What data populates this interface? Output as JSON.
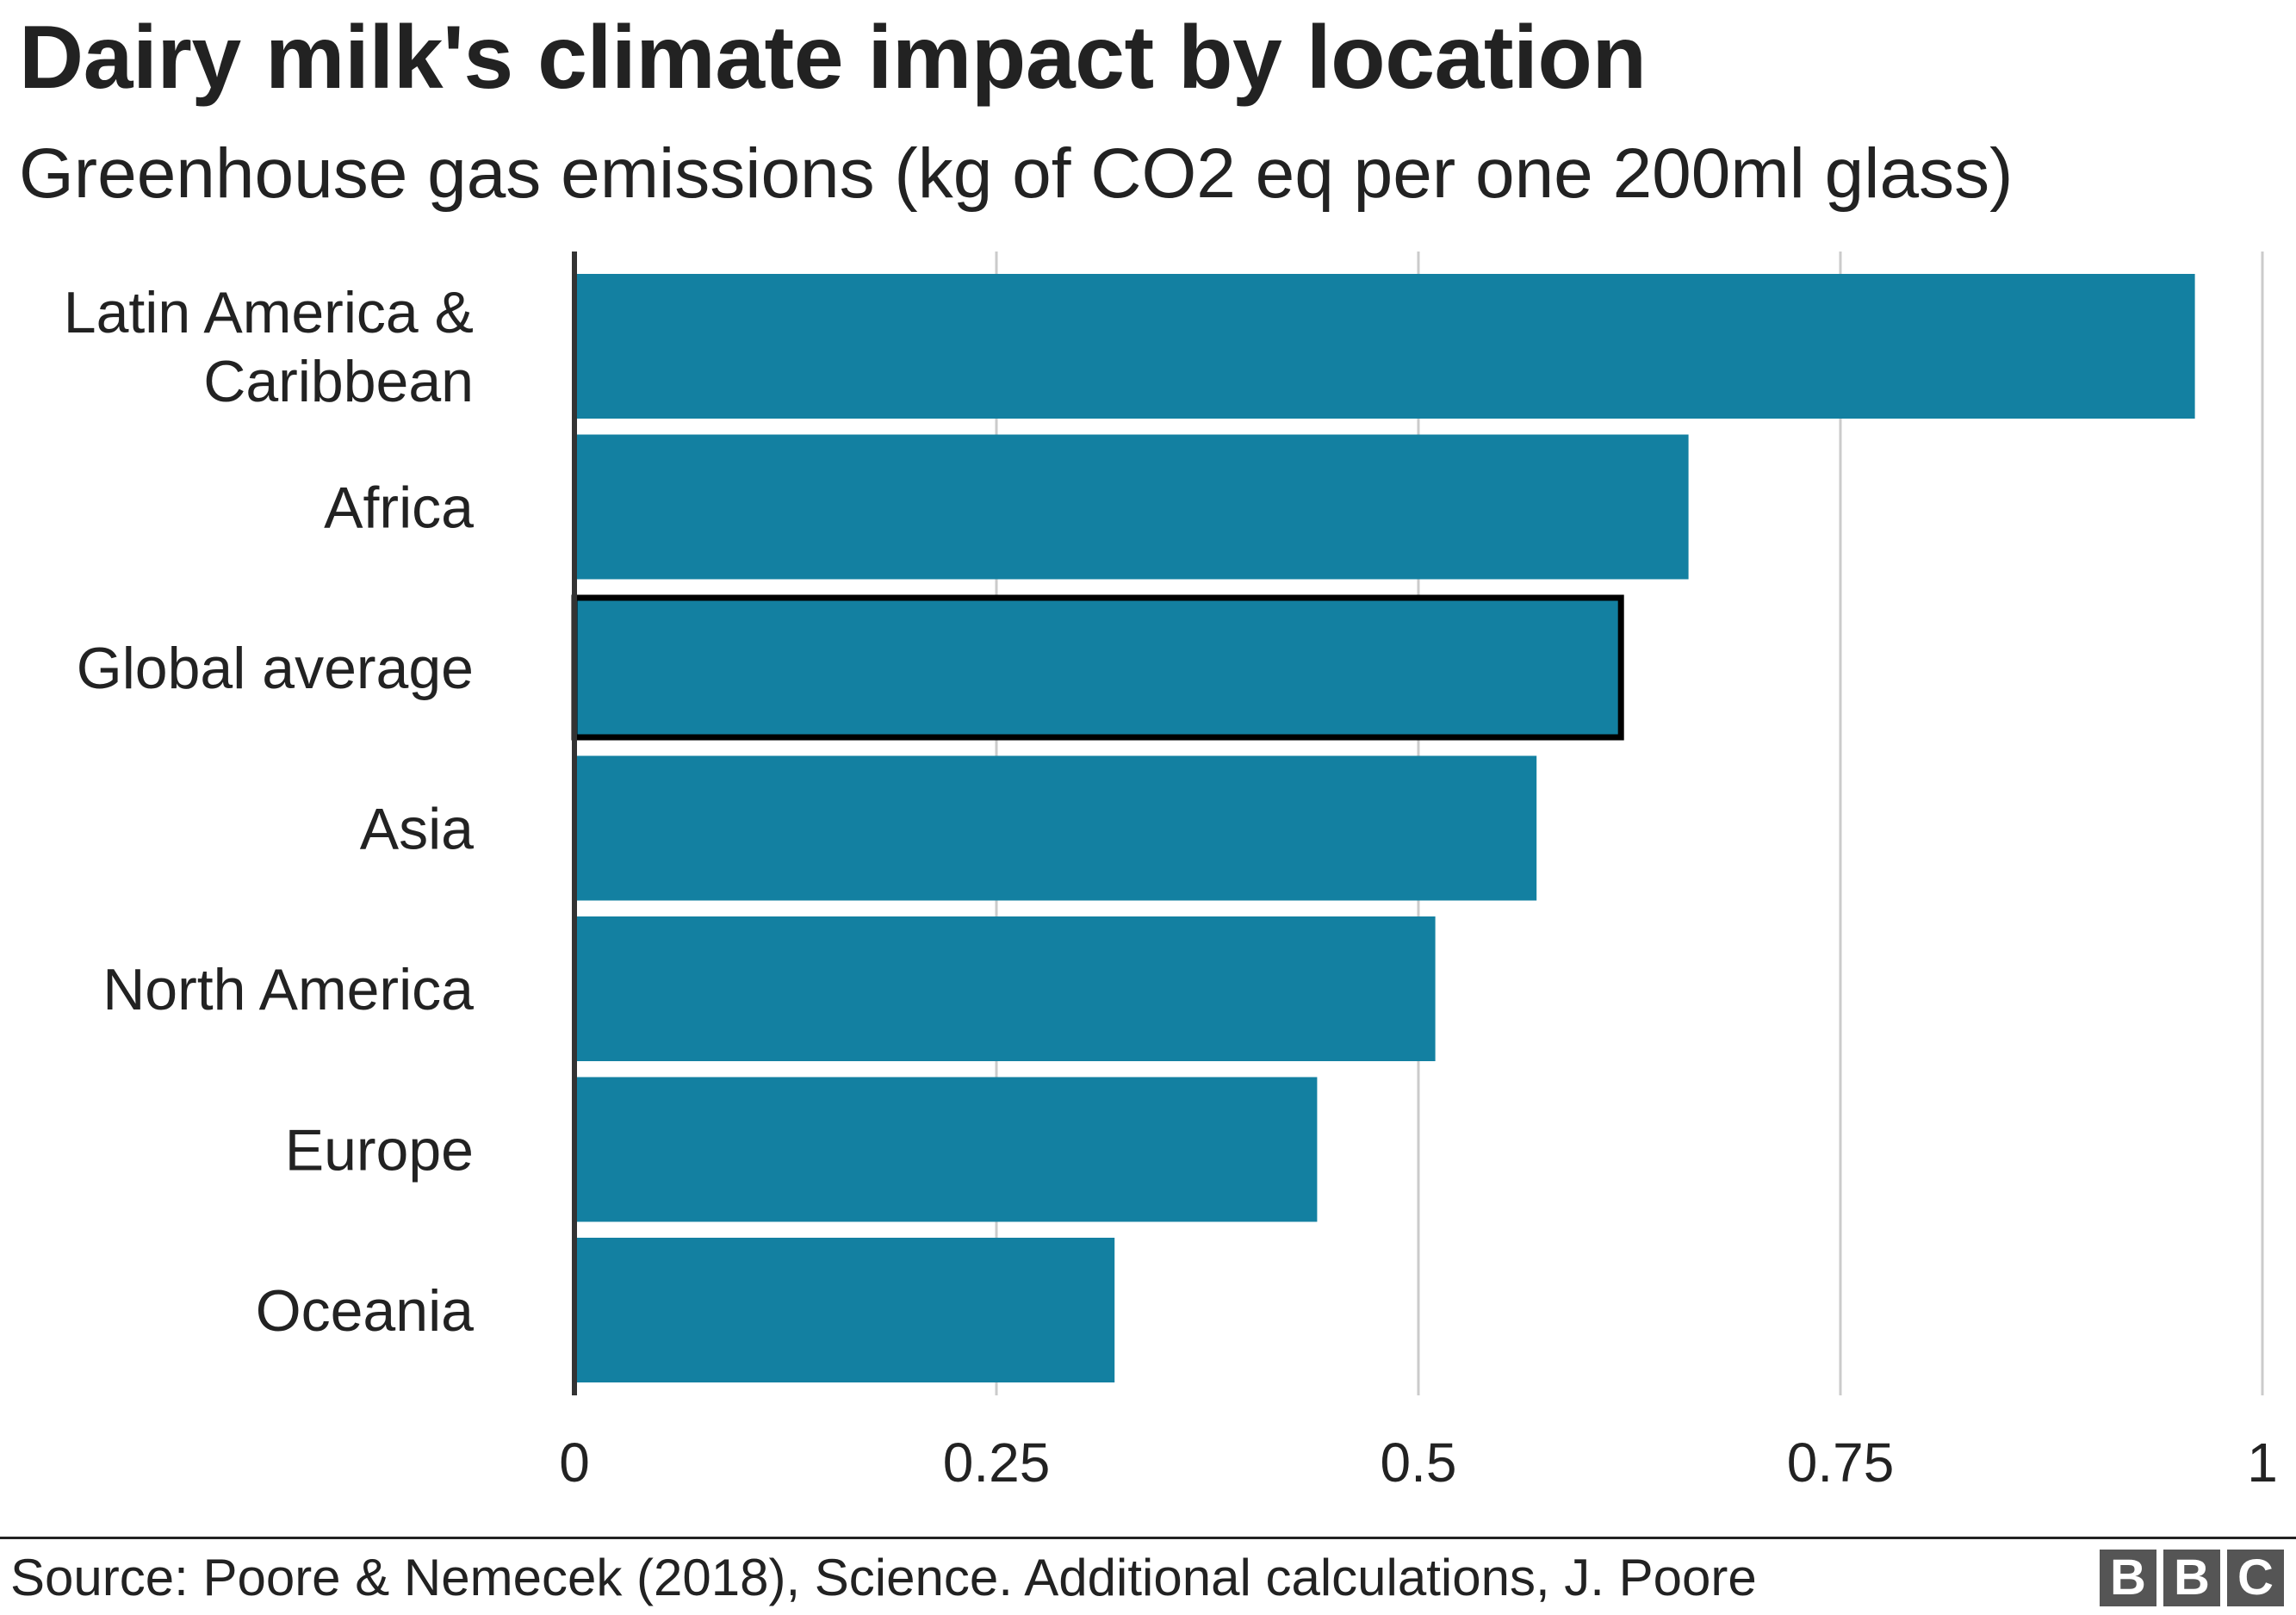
{
  "chart_data": {
    "type": "bar",
    "orientation": "horizontal",
    "title": "Dairy milk's climate impact by location",
    "subtitle": "Greenhouse gas emissions (kg of CO2 eq per one 200ml glass)",
    "categories": [
      [
        "Latin America &",
        "Caribbean"
      ],
      [
        "Africa"
      ],
      [
        "Global average"
      ],
      [
        "Asia"
      ],
      [
        "North America"
      ],
      [
        "Europe"
      ],
      [
        "Oceania"
      ]
    ],
    "values": [
      0.96,
      0.66,
      0.62,
      0.57,
      0.51,
      0.44,
      0.32
    ],
    "highlighted": "Global average",
    "xlim": [
      0,
      1
    ],
    "xticks": [
      0,
      0.25,
      0.5,
      0.75,
      1
    ],
    "xtick_labels": [
      "0",
      "0.25",
      "0.5",
      "0.75",
      "1"
    ],
    "grid": "vertical",
    "colors": {
      "bar": "#1380a1",
      "highlight_outline": "#000000",
      "grid": "#cbcbcb",
      "axis": "#333333",
      "text": "#222222"
    }
  },
  "footer": {
    "source": "Source: Poore & Nemecek (2018), Science. Additional calculations, J. Poore",
    "logo_letters": [
      "B",
      "B",
      "C"
    ]
  }
}
